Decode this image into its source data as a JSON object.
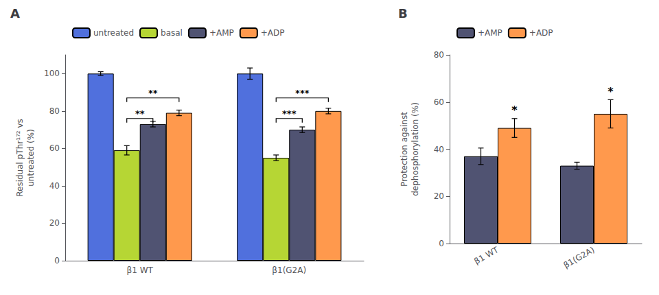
{
  "chart_data": [
    {
      "type": "bar",
      "title": "A",
      "categories": [
        "β1 WT",
        "β1(G2A)"
      ],
      "series": [
        {
          "name": "untreated",
          "values": [
            100,
            100
          ],
          "errors": [
            1,
            3
          ]
        },
        {
          "name": "basal",
          "values": [
            59,
            55
          ],
          "errors": [
            2.5,
            1.5
          ]
        },
        {
          "name": "+AMP",
          "values": [
            73,
            70
          ],
          "errors": [
            1.5,
            1.5
          ]
        },
        {
          "name": "+ADP",
          "values": [
            79,
            80
          ],
          "errors": [
            1.5,
            1.5
          ]
        }
      ],
      "ylabel": "Residual pThr¹⁷² vs\nuntreated (%)",
      "ylim": [
        0,
        110
      ],
      "yticks": [
        0,
        20,
        40,
        60,
        80,
        100
      ],
      "grid": false,
      "legend": "top",
      "annotations": [
        {
          "text": "**",
          "category": "β1 WT",
          "from": "basal",
          "to": "+AMP",
          "y": 76
        },
        {
          "text": "**",
          "category": "β1 WT",
          "from": "basal",
          "to": "+ADP",
          "y": 87
        },
        {
          "text": "***",
          "category": "β1(G2A)",
          "from": "basal",
          "to": "+AMP",
          "y": 76
        },
        {
          "text": "***",
          "category": "β1(G2A)",
          "from": "basal",
          "to": "+ADP",
          "y": 87
        }
      ]
    },
    {
      "type": "bar",
      "title": "B",
      "categories": [
        "β1 WT",
        "β1(G2A)"
      ],
      "series": [
        {
          "name": "+AMP",
          "values": [
            37,
            33
          ],
          "errors": [
            3.5,
            1.5
          ]
        },
        {
          "name": "+ADP",
          "values": [
            49,
            55
          ],
          "errors": [
            4,
            6
          ]
        }
      ],
      "ylabel": "Protection against\ndephosphorylation (%)",
      "ylim": [
        0,
        80
      ],
      "yticks": [
        0,
        20,
        40,
        60,
        80
      ],
      "grid": false,
      "legend": "top",
      "annotations": [
        {
          "text": "*",
          "category": "β1 WT",
          "series": "+ADP"
        },
        {
          "text": "*",
          "category": "β1(G2A)",
          "series": "+ADP"
        }
      ]
    }
  ]
}
